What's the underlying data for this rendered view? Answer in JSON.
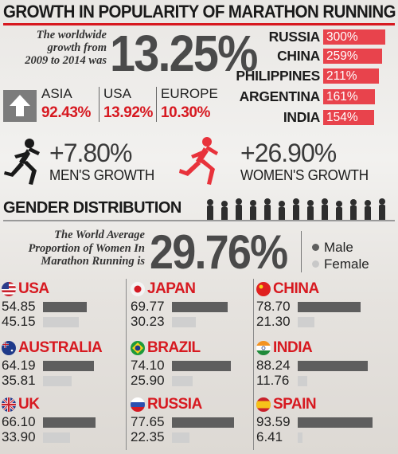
{
  "header": {
    "title": "GROWTH IN POPULARITY OF MARATHON RUNNING"
  },
  "growth": {
    "intro_lines": [
      "The worldwide",
      "growth from",
      "2009 to 2014 was"
    ],
    "value": "13.25%"
  },
  "country_growth": [
    {
      "name": "RUSSIA",
      "value": "300%"
    },
    {
      "name": "CHINA",
      "value": "259%"
    },
    {
      "name": "PHILIPPINES",
      "value": "211%"
    },
    {
      "name": "ARGENTINA",
      "value": "161%"
    },
    {
      "name": "INDIA",
      "value": "154%"
    }
  ],
  "regions": [
    {
      "name": "ASIA",
      "value": "92.43%"
    },
    {
      "name": "USA",
      "value": "13.92%"
    },
    {
      "name": "EUROPE",
      "value": "10.30%"
    }
  ],
  "men": {
    "value": "+7.80%",
    "label": "MEN'S GROWTH"
  },
  "women": {
    "value": "+26.90%",
    "label": "WOMEN'S GROWTH"
  },
  "gender": {
    "title": "GENDER DISTRIBUTION",
    "intro_lines": [
      "The World Average",
      "Proportion of Women In",
      "Marathon Running is"
    ],
    "value": "29.76%",
    "legend": {
      "male": "Male",
      "female": "Female"
    }
  },
  "colors": {
    "accent": "#d71920",
    "bar_red": "#e8434c",
    "male": "#5e5e5e",
    "female": "#cfcfcf"
  },
  "icons": [
    "up-arrow-icon",
    "male-runner-icon",
    "female-runner-icon",
    "runners-crowd-icon",
    "flag-icon"
  ],
  "chart_data": [
    {
      "type": "bar",
      "title": "",
      "categories": [
        "RUSSIA",
        "CHINA",
        "PHILIPPINES",
        "ARGENTINA",
        "INDIA"
      ],
      "values": [
        300,
        259,
        211,
        161,
        154
      ],
      "ylabel": "",
      "unit": "%"
    },
    {
      "type": "bar",
      "title": "GENDER DISTRIBUTION",
      "categories": [
        "USA",
        "JAPAN",
        "CHINA",
        "AUSTRALIA",
        "BRAZIL",
        "INDIA",
        "UK",
        "RUSSIA",
        "SPAIN"
      ],
      "series": [
        {
          "name": "Male",
          "values": [
            54.85,
            69.77,
            78.7,
            64.19,
            74.1,
            88.24,
            66.1,
            77.65,
            93.59
          ]
        },
        {
          "name": "Female",
          "values": [
            45.15,
            30.23,
            21.3,
            35.81,
            25.9,
            11.76,
            33.9,
            22.35,
            6.41
          ]
        }
      ],
      "ylim": [
        0,
        100
      ]
    }
  ]
}
